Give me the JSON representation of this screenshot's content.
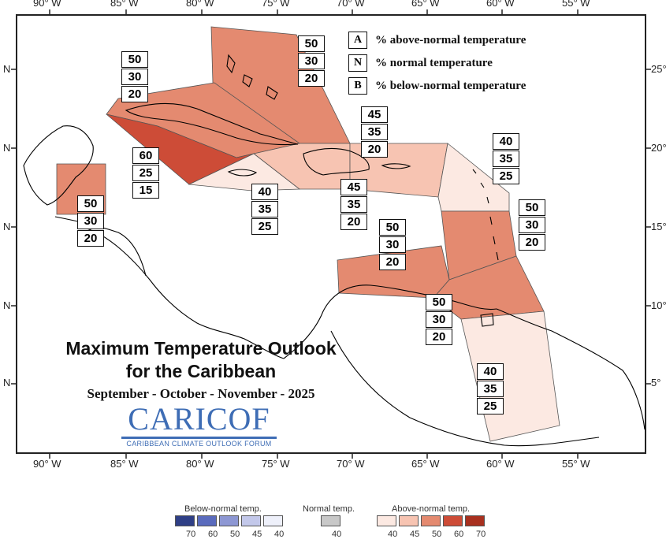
{
  "map": {
    "axis_top": [
      "90° W",
      "85° W",
      "80° W",
      "75° W",
      "70° W",
      "65° W",
      "60° W",
      "55° W"
    ],
    "axis_bottom": [
      "90° W",
      "85° W",
      "80° W",
      "75° W",
      "70° W",
      "65° W",
      "60° W",
      "55° W"
    ],
    "axis_left": [
      "N",
      "N",
      "N",
      "N",
      "N"
    ],
    "axis_right": [
      "25°",
      "20°",
      "15°",
      "10°",
      "5°"
    ]
  },
  "key": {
    "rows": [
      {
        "letter": "A",
        "text": "% above-normal temperature"
      },
      {
        "letter": "N",
        "text": "% normal temperature"
      },
      {
        "letter": "B",
        "text": "% below-normal temperature"
      }
    ]
  },
  "regions": [
    {
      "name": "bahamas",
      "A": "50",
      "N": "30",
      "B": "20",
      "fill": "#e48a70"
    },
    {
      "name": "cuba",
      "A": "50",
      "N": "30",
      "B": "20",
      "fill": "#e48a70"
    },
    {
      "name": "cayman",
      "A": "60",
      "N": "25",
      "B": "15",
      "fill": "#cd4c37"
    },
    {
      "name": "belize",
      "A": "50",
      "N": "30",
      "B": "20",
      "fill": "#e48a70"
    },
    {
      "name": "jamaica",
      "A": "40",
      "N": "35",
      "B": "25",
      "fill": "#fce9e2"
    },
    {
      "name": "hispaniola",
      "A": "45",
      "N": "35",
      "B": "20",
      "fill": "#f7c4b2"
    },
    {
      "name": "puerto-rico",
      "A": "45",
      "N": "35",
      "B": "20",
      "fill": "#f7c4b2"
    },
    {
      "name": "northern-lesser-antilles",
      "A": "40",
      "N": "35",
      "B": "25",
      "fill": "#fce9e2"
    },
    {
      "name": "central-lesser-antilles",
      "A": "50",
      "N": "30",
      "B": "20",
      "fill": "#e48a70"
    },
    {
      "name": "abc-islands",
      "A": "50",
      "N": "30",
      "B": "20",
      "fill": "#e48a70"
    },
    {
      "name": "trinidad-southern-windwards",
      "A": "50",
      "N": "30",
      "B": "20",
      "fill": "#e48a70"
    },
    {
      "name": "guianas",
      "A": "40",
      "N": "35",
      "B": "25",
      "fill": "#fce9e2"
    }
  ],
  "title": {
    "line1": "Maximum Temperature Outlook",
    "line2": "for the Caribbean",
    "season": "September - October - November - 2025"
  },
  "logo": {
    "name": "CARICOF",
    "tagline": "CARIBBEAN CLIMATE OUTLOOK FORUM"
  },
  "legend": {
    "below_title": "Below-normal temp.",
    "normal_title": "Normal temp.",
    "above_title": "Above-normal temp.",
    "below_ticks": [
      "70",
      "60",
      "50",
      "45",
      "40"
    ],
    "normal_ticks": [
      "40"
    ],
    "above_ticks": [
      "40",
      "45",
      "50",
      "60",
      "70"
    ],
    "below_colors": [
      "#2f3f86",
      "#5a6bbd",
      "#8d97d3",
      "#c3c8ea",
      "#eef0fa"
    ],
    "normal_colors": [
      "#c8c8c8"
    ],
    "above_colors": [
      "#fce9e2",
      "#f7c4b2",
      "#e48a70",
      "#cd4c37",
      "#a8301f"
    ]
  }
}
